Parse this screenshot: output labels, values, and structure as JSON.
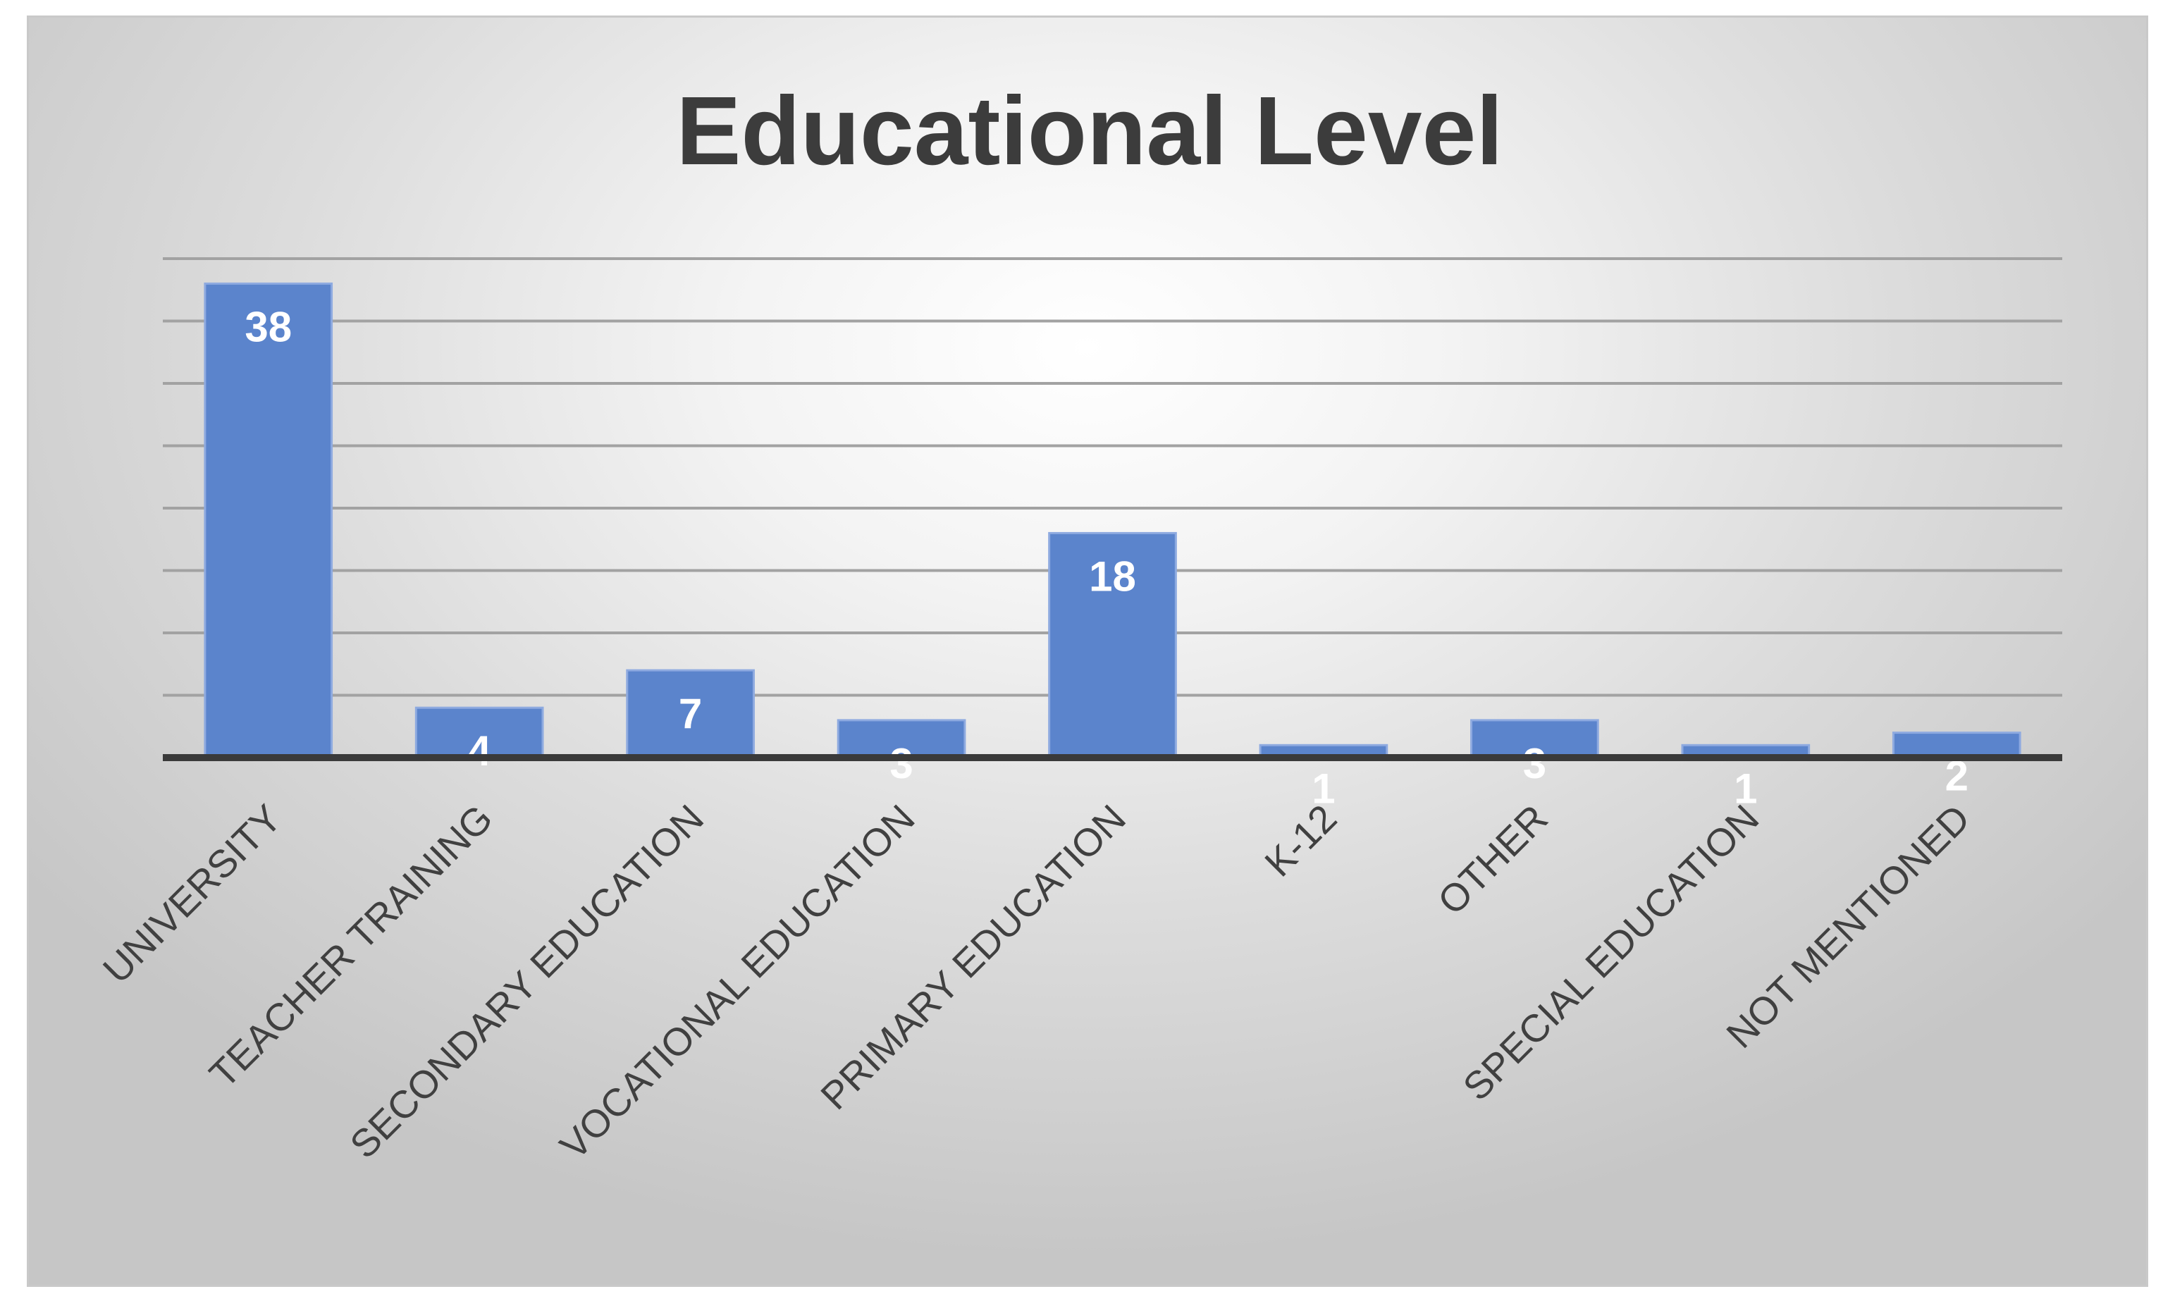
{
  "chart_data": {
    "type": "bar",
    "title": "Educational Level",
    "xlabel": "",
    "ylabel": "",
    "categories": [
      "UNIVERSITY",
      "TEACHER TRAINING",
      "SECONDARY EDUCATION",
      "VOCATIONAL EDUCATION",
      "PRIMARY EDUCATION",
      "K-12",
      "OTHER",
      "SPECIAL EDUCATION",
      "NOT MENTIONED"
    ],
    "values": [
      38,
      4,
      7,
      3,
      18,
      1,
      3,
      1,
      2
    ],
    "ylim": [
      0,
      40
    ],
    "grid": true,
    "legend": "none",
    "bar_color": "#5b84cc",
    "label_color": "#ffffff"
  }
}
